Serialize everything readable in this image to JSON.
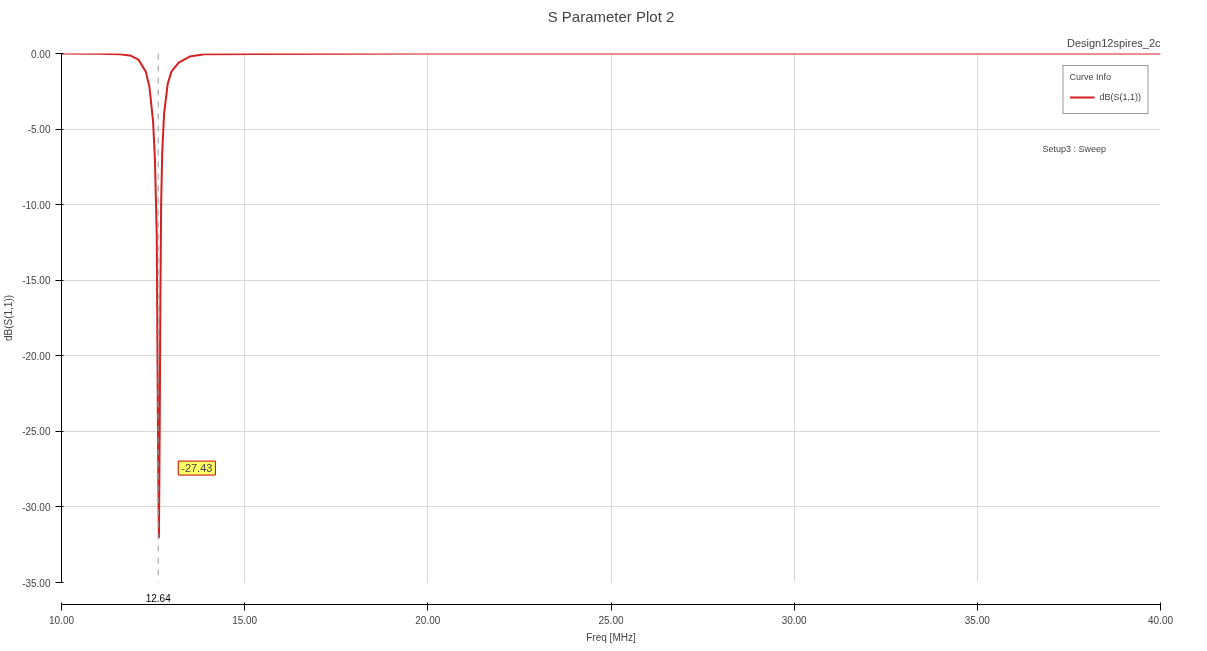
{
  "chart_data": {
    "type": "line",
    "title": "S Parameter Plot 2",
    "xlabel": "Freq [MHz]",
    "ylabel": "dB(S(1,1))",
    "legend_title": "Curve Info",
    "annotations": [
      "Design12spires_2c",
      "Setup3 : Sweep",
      {
        "text": "-27.43",
        "x": 12.64,
        "y": -27.43
      }
    ],
    "series": [
      {
        "name": "dB(S(1,1))",
        "color": "#d42020",
        "x": [
          10,
          11.0,
          11.6,
          11.9,
          12.1,
          12.3,
          12.4,
          12.5,
          12.55,
          12.6,
          12.62,
          12.64,
          12.66,
          12.68,
          12.7,
          12.72,
          12.75,
          12.8,
          12.9,
          13.0,
          13.2,
          13.5,
          13.9,
          20,
          27,
          34,
          40
        ],
        "values": [
          0,
          -0.01,
          -0.05,
          -0.15,
          -0.4,
          -1.2,
          -2.2,
          -4.5,
          -7,
          -12,
          -20,
          -27.43,
          -32,
          -25,
          -16,
          -10,
          -6.5,
          -4,
          -2,
          -1.2,
          -0.6,
          -0.2,
          -0.05,
          0,
          0,
          0,
          0
        ]
      }
    ],
    "xlim": [
      10,
      40
    ],
    "ylim": [
      -35,
      0
    ],
    "xticks": [
      {
        "value": 10,
        "label": "10.00"
      },
      {
        "value": 15,
        "label": "15.00"
      },
      {
        "value": 20,
        "label": "20.00"
      },
      {
        "value": 25,
        "label": "25.00"
      },
      {
        "value": 30,
        "label": "30.00"
      },
      {
        "value": 35,
        "label": "35.00"
      },
      {
        "value": 40,
        "label": "40.00"
      }
    ],
    "yticks": [
      {
        "value": 0,
        "label": "0.00"
      },
      {
        "value": -5,
        "label": "-5.00"
      },
      {
        "value": -10,
        "label": "-10.00"
      },
      {
        "value": -15,
        "label": "-15.00"
      },
      {
        "value": -20,
        "label": "-20.00"
      },
      {
        "value": -25,
        "label": "-25.00"
      },
      {
        "value": -30,
        "label": "-30.00"
      },
      {
        "value": -35,
        "label": "-35.00"
      }
    ],
    "ref_lines": [
      {
        "axis": "x",
        "value": 12.64,
        "label": "12.64",
        "color": "#999999",
        "line_style": "dashed"
      }
    ],
    "grid": true,
    "legend": "top right",
    "marker": "none",
    "line_style": "solid"
  }
}
